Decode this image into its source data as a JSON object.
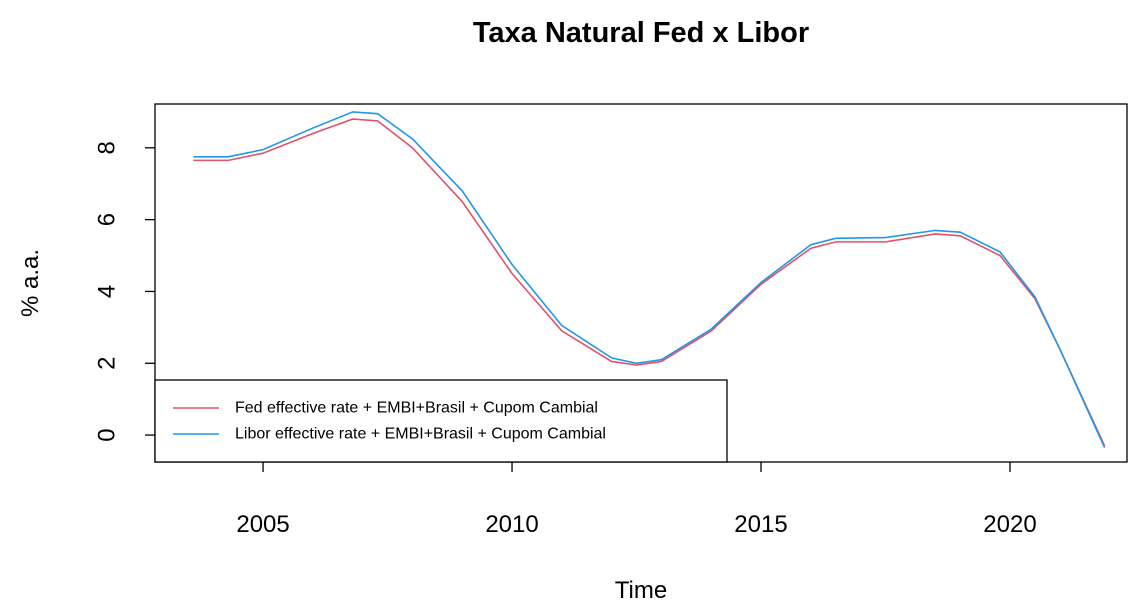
{
  "chart_data": {
    "type": "line",
    "title": "Taxa Natural Fed x Libor",
    "x_label": "Time",
    "y_label": "% a.a.",
    "xlim": [
      2002.83,
      2022.35
    ],
    "ylim": [
      -0.75,
      9.22
    ],
    "xticks": [
      2005,
      2010,
      2015,
      2020
    ],
    "yticks": [
      0,
      2,
      4,
      6,
      8
    ],
    "legend_position": "bottomleft",
    "x": [
      2003.6,
      2004.3,
      2005,
      2006,
      2006.8,
      2007.3,
      2008,
      2009,
      2010,
      2011,
      2012,
      2012.5,
      2013,
      2014,
      2015,
      2016,
      2016.5,
      2017.5,
      2018.5,
      2019,
      2019.8,
      2020.5,
      2021,
      2021.9
    ],
    "series": [
      {
        "name": "Fed effective rate + EMBI+Brasil + Cupom Cambial",
        "color": "#df536b",
        "values": [
          7.65,
          7.65,
          7.85,
          8.4,
          8.8,
          8.75,
          8.0,
          6.5,
          4.5,
          2.9,
          2.05,
          1.95,
          2.05,
          2.9,
          4.2,
          5.2,
          5.38,
          5.38,
          5.6,
          5.55,
          5.0,
          3.8,
          2.4,
          -0.3
        ]
      },
      {
        "name": "Libor effective rate + EMBI+Brasil + Cupom Cambial",
        "color": "#2297e6",
        "values": [
          7.75,
          7.75,
          7.95,
          8.55,
          9.0,
          8.95,
          8.25,
          6.8,
          4.75,
          3.05,
          2.15,
          2.0,
          2.1,
          2.95,
          4.25,
          5.3,
          5.48,
          5.5,
          5.7,
          5.65,
          5.1,
          3.85,
          2.4,
          -0.35
        ]
      }
    ]
  }
}
